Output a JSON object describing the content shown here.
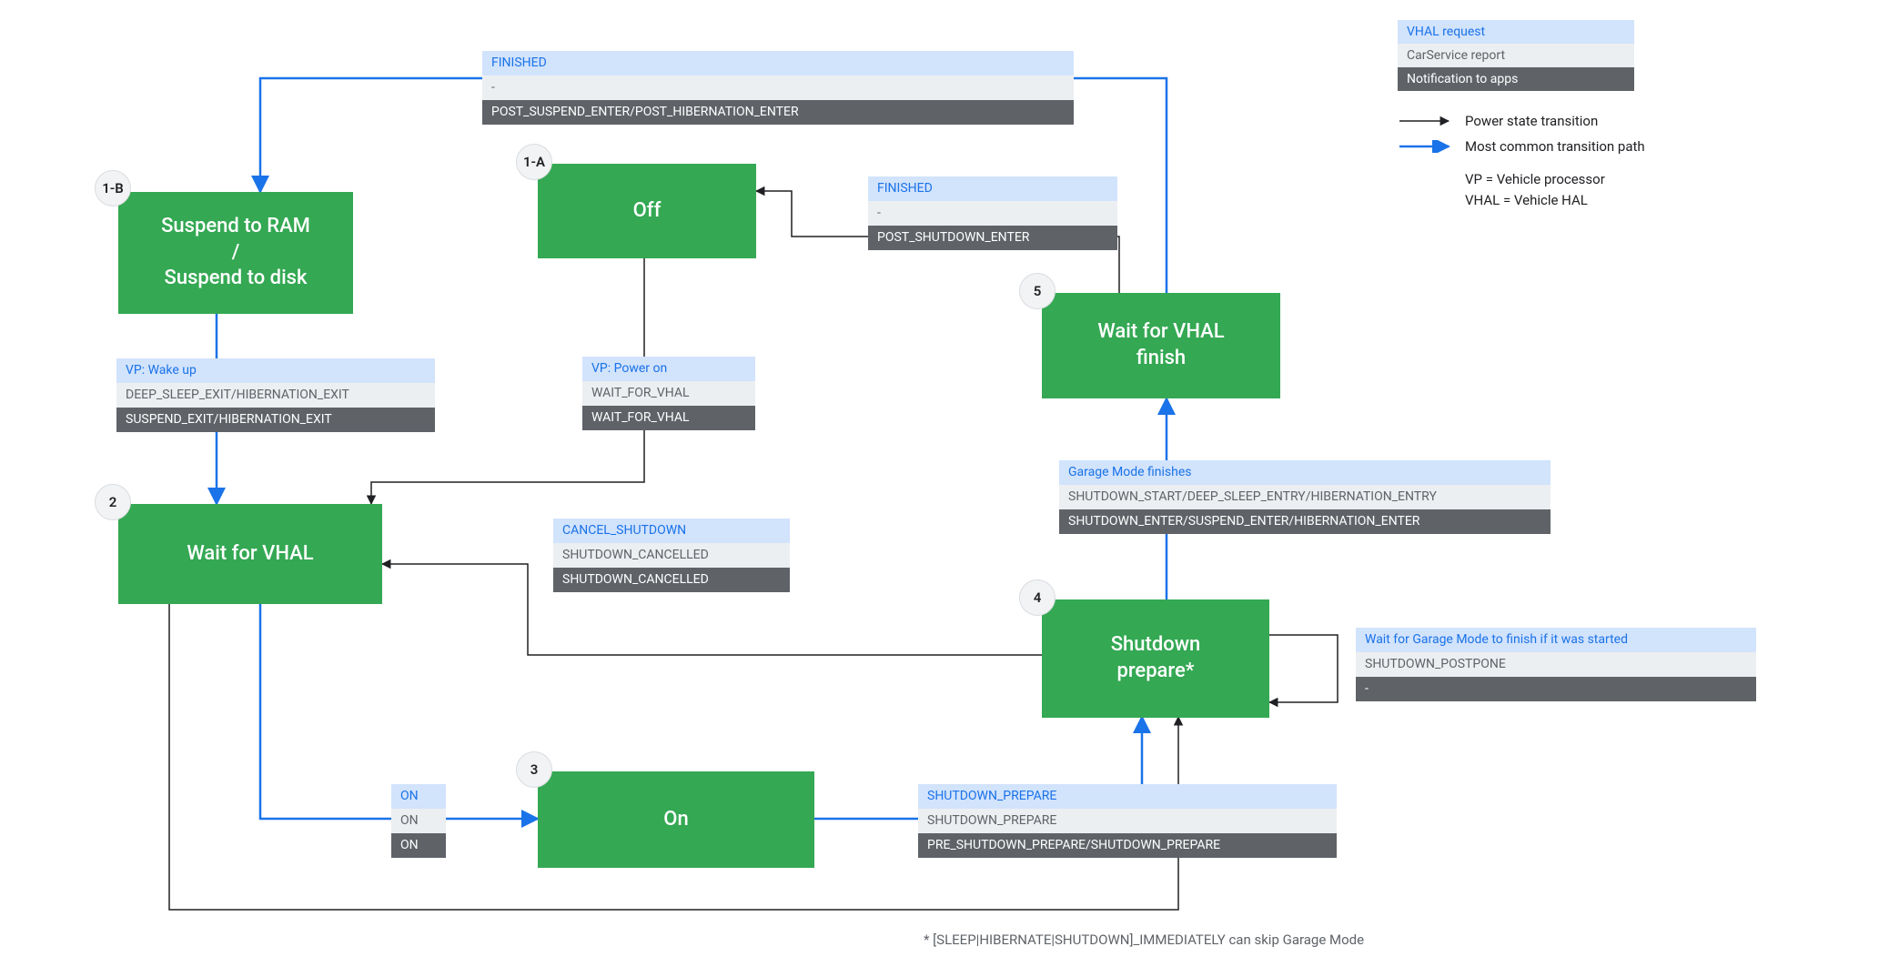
{
  "legend": {
    "vhal_label": "VHAL request",
    "car_label": "CarService report",
    "app_label": "Notification to apps",
    "black_arrow": "Power state transition",
    "blue_arrow": "Most common transition path",
    "abbr_vp": "VP = Vehicle processor",
    "abbr_vhal": "VHAL = Vehicle HAL"
  },
  "colors": {
    "node_bg": "#34a853",
    "node_fg": "#ffffff",
    "vhal_bg": "#d2e3fc",
    "vhal_fg": "#1a73e8",
    "car_bg": "#eceff1",
    "car_fg": "#5f6368",
    "app_bg": "#5f6368",
    "app_fg": "#ffffff",
    "badge_bg": "#f1f3f4",
    "badge_border": "#dadce0",
    "edge_black": "#202124",
    "edge_blue": "#1a73e8"
  },
  "nodes": {
    "suspend": {
      "badge": "1-B",
      "label": "Suspend to RAM\n/\nSuspend to disk"
    },
    "off": {
      "badge": "1-A",
      "label": "Off"
    },
    "wait": {
      "badge": "2",
      "label": "Wait for VHAL"
    },
    "on": {
      "badge": "3",
      "label": "On"
    },
    "prepare": {
      "badge": "4",
      "label": "Shutdown\nprepare*"
    },
    "finish": {
      "badge": "5",
      "label": "Wait for VHAL\nfinish"
    }
  },
  "msgs": {
    "finished_suspend": {
      "vhal": "FINISHED",
      "car": "-",
      "app": "POST_SUSPEND_ENTER/POST_HIBERNATION_ENTER"
    },
    "finished_off": {
      "vhal": "FINISHED",
      "car": "-",
      "app": "POST_SHUTDOWN_ENTER"
    },
    "wakeup": {
      "vhal": "VP: Wake up",
      "car": "DEEP_SLEEP_EXIT/HIBERNATION_EXIT",
      "app": "SUSPEND_EXIT/HIBERNATION_EXIT"
    },
    "poweron": {
      "vhal": "VP: Power on",
      "car": "WAIT_FOR_VHAL",
      "app": "WAIT_FOR_VHAL"
    },
    "cancel": {
      "vhal": "CANCEL_SHUTDOWN",
      "car": "SHUTDOWN_CANCELLED",
      "app": "SHUTDOWN_CANCELLED"
    },
    "garage_done": {
      "vhal": "Garage Mode finishes",
      "car": "SHUTDOWN_START/DEEP_SLEEP_ENTRY/HIBERNATION_ENTRY",
      "app": "SHUTDOWN_ENTER/SUSPEND_ENTER/HIBERNATION_ENTER"
    },
    "postpone": {
      "vhal": "Wait for Garage Mode to finish if it was started",
      "car": "SHUTDOWN_POSTPONE",
      "app": "-"
    },
    "on_trio": {
      "vhal": "ON",
      "car": "ON",
      "app": "ON"
    },
    "shutdown_prepare": {
      "vhal": "SHUTDOWN_PREPARE",
      "car": "SHUTDOWN_PREPARE",
      "app": "PRE_SHUTDOWN_PREPARE/SHUTDOWN_PREPARE"
    }
  },
  "footnote": "* [SLEEP|HIBERNATE|SHUTDOWN]_IMMEDIATELY can skip Garage Mode"
}
